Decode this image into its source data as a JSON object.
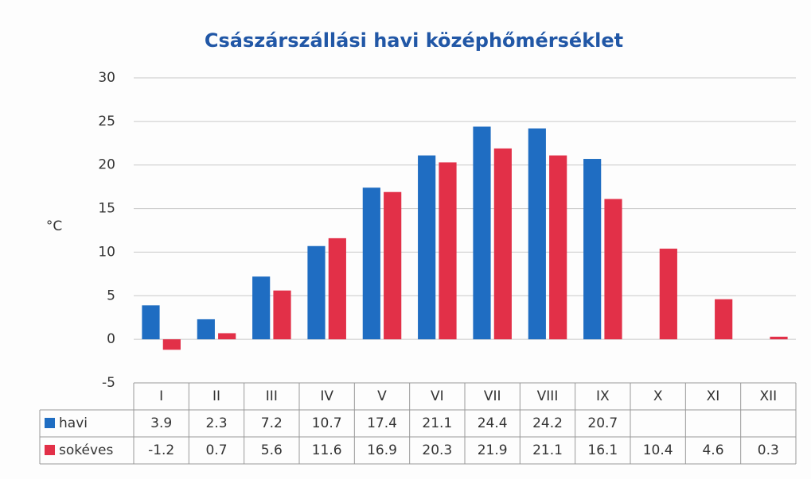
{
  "chart_data": {
    "type": "bar",
    "title": "Császárszállási havi középhőmérséklet",
    "y_label": "°C",
    "categories": [
      "I",
      "II",
      "III",
      "IV",
      "V",
      "VI",
      "VII",
      "VIII",
      "IX",
      "X",
      "XI",
      "XII"
    ],
    "series": [
      {
        "name": "havi",
        "color": "#1f6dc2",
        "values": [
          3.9,
          2.3,
          7.2,
          10.7,
          17.4,
          21.1,
          24.4,
          24.2,
          20.7,
          null,
          null,
          null
        ]
      },
      {
        "name": "sokéves",
        "color": "#e23048",
        "values": [
          -1.2,
          0.7,
          5.6,
          11.6,
          16.9,
          20.3,
          21.9,
          21.1,
          16.1,
          10.4,
          4.6,
          0.3
        ]
      }
    ],
    "ylim": [
      -5,
      30
    ],
    "yticks": [
      -5,
      0,
      5,
      10,
      15,
      20,
      25,
      30
    ],
    "grid": true
  }
}
